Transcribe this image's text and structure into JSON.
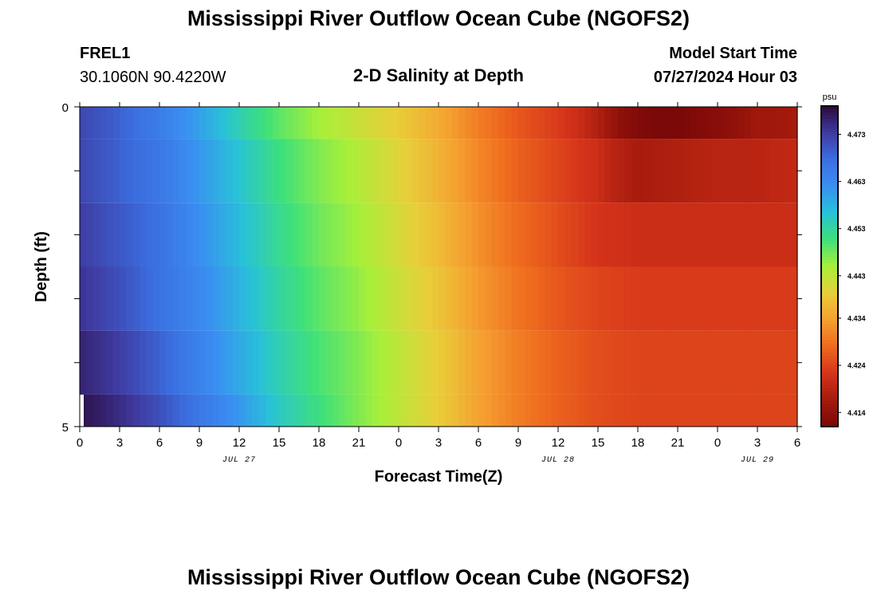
{
  "header": {
    "title": "Mississippi River Outflow Ocean Cube (NGOFS2)",
    "station_id": "FREL1",
    "station_coords": "30.1060N  90.4220W",
    "plot_title": "2-D Salinity at Depth",
    "model_start_label": "Model Start Time",
    "model_start_value": "07/27/2024 Hour 03"
  },
  "footer": {
    "title": "Mississippi River Outflow Ocean Cube (NGOFS2)"
  },
  "chart_data": {
    "type": "heatmap",
    "title": "2-D Salinity at Depth",
    "xlabel": "Forecast Time(Z)",
    "ylabel": "Depth (ft)",
    "x_tick_labels": [
      "0",
      "3",
      "6",
      "9",
      "12",
      "15",
      "18",
      "21",
      "0",
      "3",
      "6",
      "9",
      "12",
      "15",
      "18",
      "21",
      "0",
      "3",
      "6"
    ],
    "date_labels": [
      {
        "label": "JUL 27",
        "at_tick": 4
      },
      {
        "label": "JUL 28",
        "at_tick": 12
      },
      {
        "label": "JUL 29",
        "at_tick": 17
      }
    ],
    "xlim_hours": [
      0,
      54
    ],
    "y_tick_labels": [
      "0",
      "5"
    ],
    "ylim": [
      0,
      5
    ],
    "colorbar": {
      "unit": "psu",
      "tick_labels": [
        "4.473",
        "4.463",
        "4.453",
        "4.443",
        "4.434",
        "4.424",
        "4.414"
      ],
      "tick_values": [
        4.473,
        4.463,
        4.453,
        4.443,
        4.434,
        4.424,
        4.414
      ],
      "range": [
        4.411,
        4.479
      ],
      "colors": [
        "#2a0a3a",
        "#3f3aa0",
        "#3b6ee0",
        "#3a8ef2",
        "#28c2d8",
        "#3ee07a",
        "#a6f03a",
        "#e8cf3a",
        "#f5a030",
        "#ef6a1e",
        "#d6341a",
        "#a51a0c",
        "#7a0808"
      ]
    },
    "layers": [
      {
        "depth_range": [
          0,
          0.5
        ],
        "x_hours": [
          0,
          3,
          6,
          9,
          12,
          15,
          18,
          21,
          24,
          27,
          30,
          33,
          36,
          37.5,
          39,
          40.5,
          42,
          43.5,
          45,
          46.5,
          48,
          49.5,
          51,
          52.5,
          54
        ],
        "values": [
          4.472,
          4.469,
          4.465,
          4.46,
          4.454,
          4.449,
          4.445,
          4.442,
          4.439,
          4.435,
          4.43,
          4.426,
          4.423,
          4.421,
          4.418,
          4.414,
          4.412,
          4.411,
          4.411,
          4.412,
          4.413,
          4.414,
          4.416,
          4.416,
          4.417
        ]
      },
      {
        "depth_range": [
          0.5,
          1.5
        ],
        "x_hours": [
          0,
          3,
          6,
          9,
          12,
          15,
          18,
          21,
          24,
          27,
          30,
          33,
          36,
          39,
          40,
          42,
          45,
          48,
          51,
          54
        ],
        "values": [
          4.472,
          4.469,
          4.466,
          4.461,
          4.456,
          4.451,
          4.447,
          4.444,
          4.44,
          4.436,
          4.431,
          4.427,
          4.424,
          4.421,
          4.419,
          4.417,
          4.418,
          4.419,
          4.419,
          4.42
        ]
      },
      {
        "depth_range": [
          1.5,
          2.5
        ],
        "x_hours": [
          0,
          3,
          6,
          9,
          12,
          15,
          18,
          21,
          24,
          27,
          30,
          33,
          36,
          39,
          42,
          45,
          48,
          51,
          54
        ],
        "values": [
          4.473,
          4.47,
          4.467,
          4.462,
          4.457,
          4.452,
          4.448,
          4.445,
          4.441,
          4.437,
          4.432,
          4.428,
          4.425,
          4.422,
          4.421,
          4.421,
          4.421,
          4.421,
          4.421
        ]
      },
      {
        "depth_range": [
          2.5,
          3.5
        ],
        "x_hours": [
          0,
          3,
          6,
          9,
          12,
          15,
          18,
          21,
          24,
          27,
          30,
          33,
          36,
          39,
          42,
          45,
          48,
          51,
          54
        ],
        "values": [
          4.474,
          4.471,
          4.467,
          4.463,
          4.458,
          4.453,
          4.449,
          4.446,
          4.442,
          4.438,
          4.433,
          4.429,
          4.426,
          4.424,
          4.423,
          4.423,
          4.423,
          4.423,
          4.423
        ]
      },
      {
        "depth_range": [
          3.5,
          4.5
        ],
        "x_hours": [
          0,
          3,
          6,
          9,
          12,
          15,
          18,
          21,
          24,
          27,
          30,
          33,
          36,
          39,
          42,
          45,
          48,
          51,
          54
        ],
        "values": [
          4.476,
          4.473,
          4.469,
          4.464,
          4.459,
          4.454,
          4.45,
          4.447,
          4.443,
          4.439,
          4.434,
          4.43,
          4.427,
          4.425,
          4.424,
          4.424,
          4.424,
          4.424,
          4.424
        ]
      },
      {
        "depth_range": [
          4.5,
          5
        ],
        "x_hours": [
          0,
          3,
          6,
          9,
          12,
          15,
          18,
          21,
          24,
          27,
          30,
          33,
          36,
          39,
          42,
          45,
          48,
          51,
          54
        ],
        "values": [
          4.478,
          4.475,
          4.471,
          4.466,
          4.461,
          4.455,
          4.451,
          4.447,
          4.443,
          4.439,
          4.434,
          4.43,
          4.427,
          4.425,
          4.424,
          4.424,
          4.424,
          4.424,
          4.424
        ]
      }
    ]
  }
}
